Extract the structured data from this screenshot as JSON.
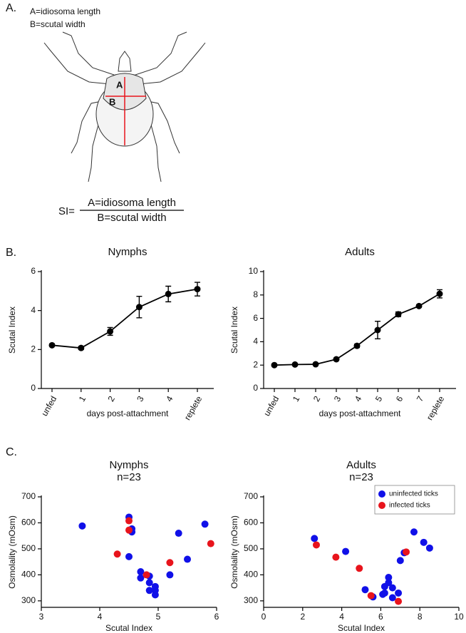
{
  "figure": {
    "panel_a": {
      "label": "A.",
      "legend_a": "A=idiosoma length",
      "legend_b": "B=scutal width",
      "mark_a": "A",
      "mark_b": "B",
      "formula_lhs": "SI=",
      "numerator": "A=idiosoma length",
      "denominator": "B=scutal width"
    },
    "panel_b_label": "B.",
    "panel_c_label": "C."
  },
  "chart_data": [
    {
      "type": "line",
      "title": "Nymphs",
      "categories": [
        "unfed",
        "1",
        "2",
        "3",
        "4",
        "replete"
      ],
      "series": [
        {
          "color": "#000000",
          "values": [
            2.22,
            2.08,
            2.93,
            4.18,
            4.85,
            5.1
          ],
          "errors": [
            0.05,
            0.08,
            0.2,
            0.55,
            0.4,
            0.35
          ]
        }
      ],
      "x_label": "days post-attachment",
      "y_label": "Scutal Index",
      "ylim": [
        0,
        6
      ],
      "yticks": [
        0,
        2,
        4,
        6
      ]
    },
    {
      "type": "line",
      "title": "Adults",
      "categories": [
        "unfed",
        "1",
        "2",
        "3",
        "4",
        "5",
        "6",
        "7",
        "replete"
      ],
      "series": [
        {
          "color": "#000000",
          "values": [
            2.0,
            2.05,
            2.07,
            2.5,
            3.65,
            5.0,
            6.35,
            7.05,
            8.1
          ],
          "errors": [
            0.05,
            0.05,
            0.05,
            0.1,
            0.15,
            0.75,
            0.2,
            0.1,
            0.35
          ]
        }
      ],
      "x_label": "days post-attachment",
      "y_label": "Scutal Index",
      "ylim": [
        0,
        10
      ],
      "yticks": [
        0,
        2,
        4,
        6,
        8,
        10
      ]
    },
    {
      "type": "scatter",
      "title": "Nymphs",
      "subtitle": "n=23",
      "series": [
        {
          "color": "#1010e8",
          "x": [
            3.7,
            4.5,
            4.55,
            4.55,
            4.5,
            5.8,
            5.35,
            5.5,
            5.2,
            4.7,
            4.7,
            4.85,
            4.85,
            4.85,
            4.95,
            4.95,
            4.95
          ],
          "y": [
            588,
            622,
            577,
            565,
            470,
            595,
            560,
            460,
            400,
            412,
            388,
            395,
            370,
            340,
            355,
            340,
            323
          ]
        },
        {
          "color": "#e8141c",
          "x": [
            4.5,
            4.5,
            4.3,
            4.8,
            5.2,
            5.9
          ],
          "y": [
            608,
            572,
            480,
            400,
            447,
            520
          ]
        }
      ],
      "x_label": "Scutal Index",
      "y_label": "Osmolality (mOsm)",
      "xlim": [
        3,
        6
      ],
      "xticks": [
        3,
        4,
        5,
        6
      ],
      "ylim": [
        275,
        700
      ],
      "yticks": [
        300,
        400,
        500,
        600,
        700
      ]
    },
    {
      "type": "scatter",
      "title": "Adults",
      "subtitle": "n=23",
      "series": [
        {
          "name": "uninfected ticks",
          "color": "#1010e8",
          "x": [
            2.6,
            4.2,
            5.2,
            5.6,
            6.1,
            6.2,
            6.2,
            6.4,
            6.4,
            6.6,
            6.6,
            6.9,
            7.0,
            7.2,
            7.7,
            8.2,
            8.5
          ],
          "y": [
            540,
            490,
            343,
            315,
            325,
            330,
            355,
            370,
            390,
            350,
            312,
            330,
            455,
            485,
            565,
            525,
            503
          ]
        },
        {
          "name": "infected ticks",
          "color": "#e8141c",
          "x": [
            2.7,
            3.7,
            4.9,
            5.5,
            6.9,
            7.3
          ],
          "y": [
            515,
            468,
            425,
            320,
            298,
            488
          ]
        }
      ],
      "x_label": "Scutal Index",
      "y_label": "Osmolality (mOsm)",
      "xlim": [
        0,
        10
      ],
      "xticks": [
        0,
        2,
        4,
        6,
        8,
        10
      ],
      "ylim": [
        275,
        700
      ],
      "yticks": [
        300,
        400,
        500,
        600,
        700
      ],
      "legend": "upper right"
    }
  ]
}
